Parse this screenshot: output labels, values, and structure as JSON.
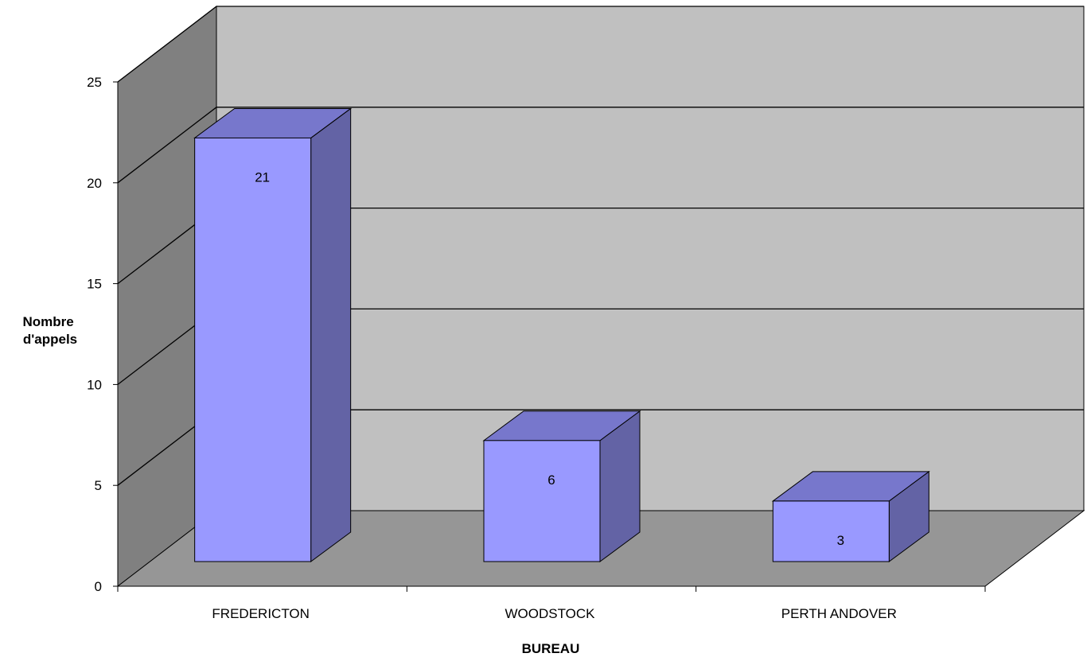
{
  "chart_data": {
    "type": "bar",
    "categories": [
      "FREDERICTON",
      "WOODSTOCK",
      "PERTH ANDOVER"
    ],
    "values": [
      21,
      6,
      3
    ],
    "data_labels": [
      "21",
      "6",
      "3"
    ],
    "xlabel": "BUREAU",
    "ylabel_lines": [
      "Nombre",
      "d'appels"
    ],
    "ylim": [
      0,
      25
    ],
    "yticks": [
      0,
      5,
      10,
      15,
      20,
      25
    ],
    "grid": true,
    "style": "3d-column",
    "colors": {
      "bar_front": "#9999ff",
      "bar_top": "#7777cc",
      "bar_side": "#6363a5",
      "back_wall": "#c0c0c0",
      "side_wall": "#808080",
      "floor": "#969696"
    }
  }
}
